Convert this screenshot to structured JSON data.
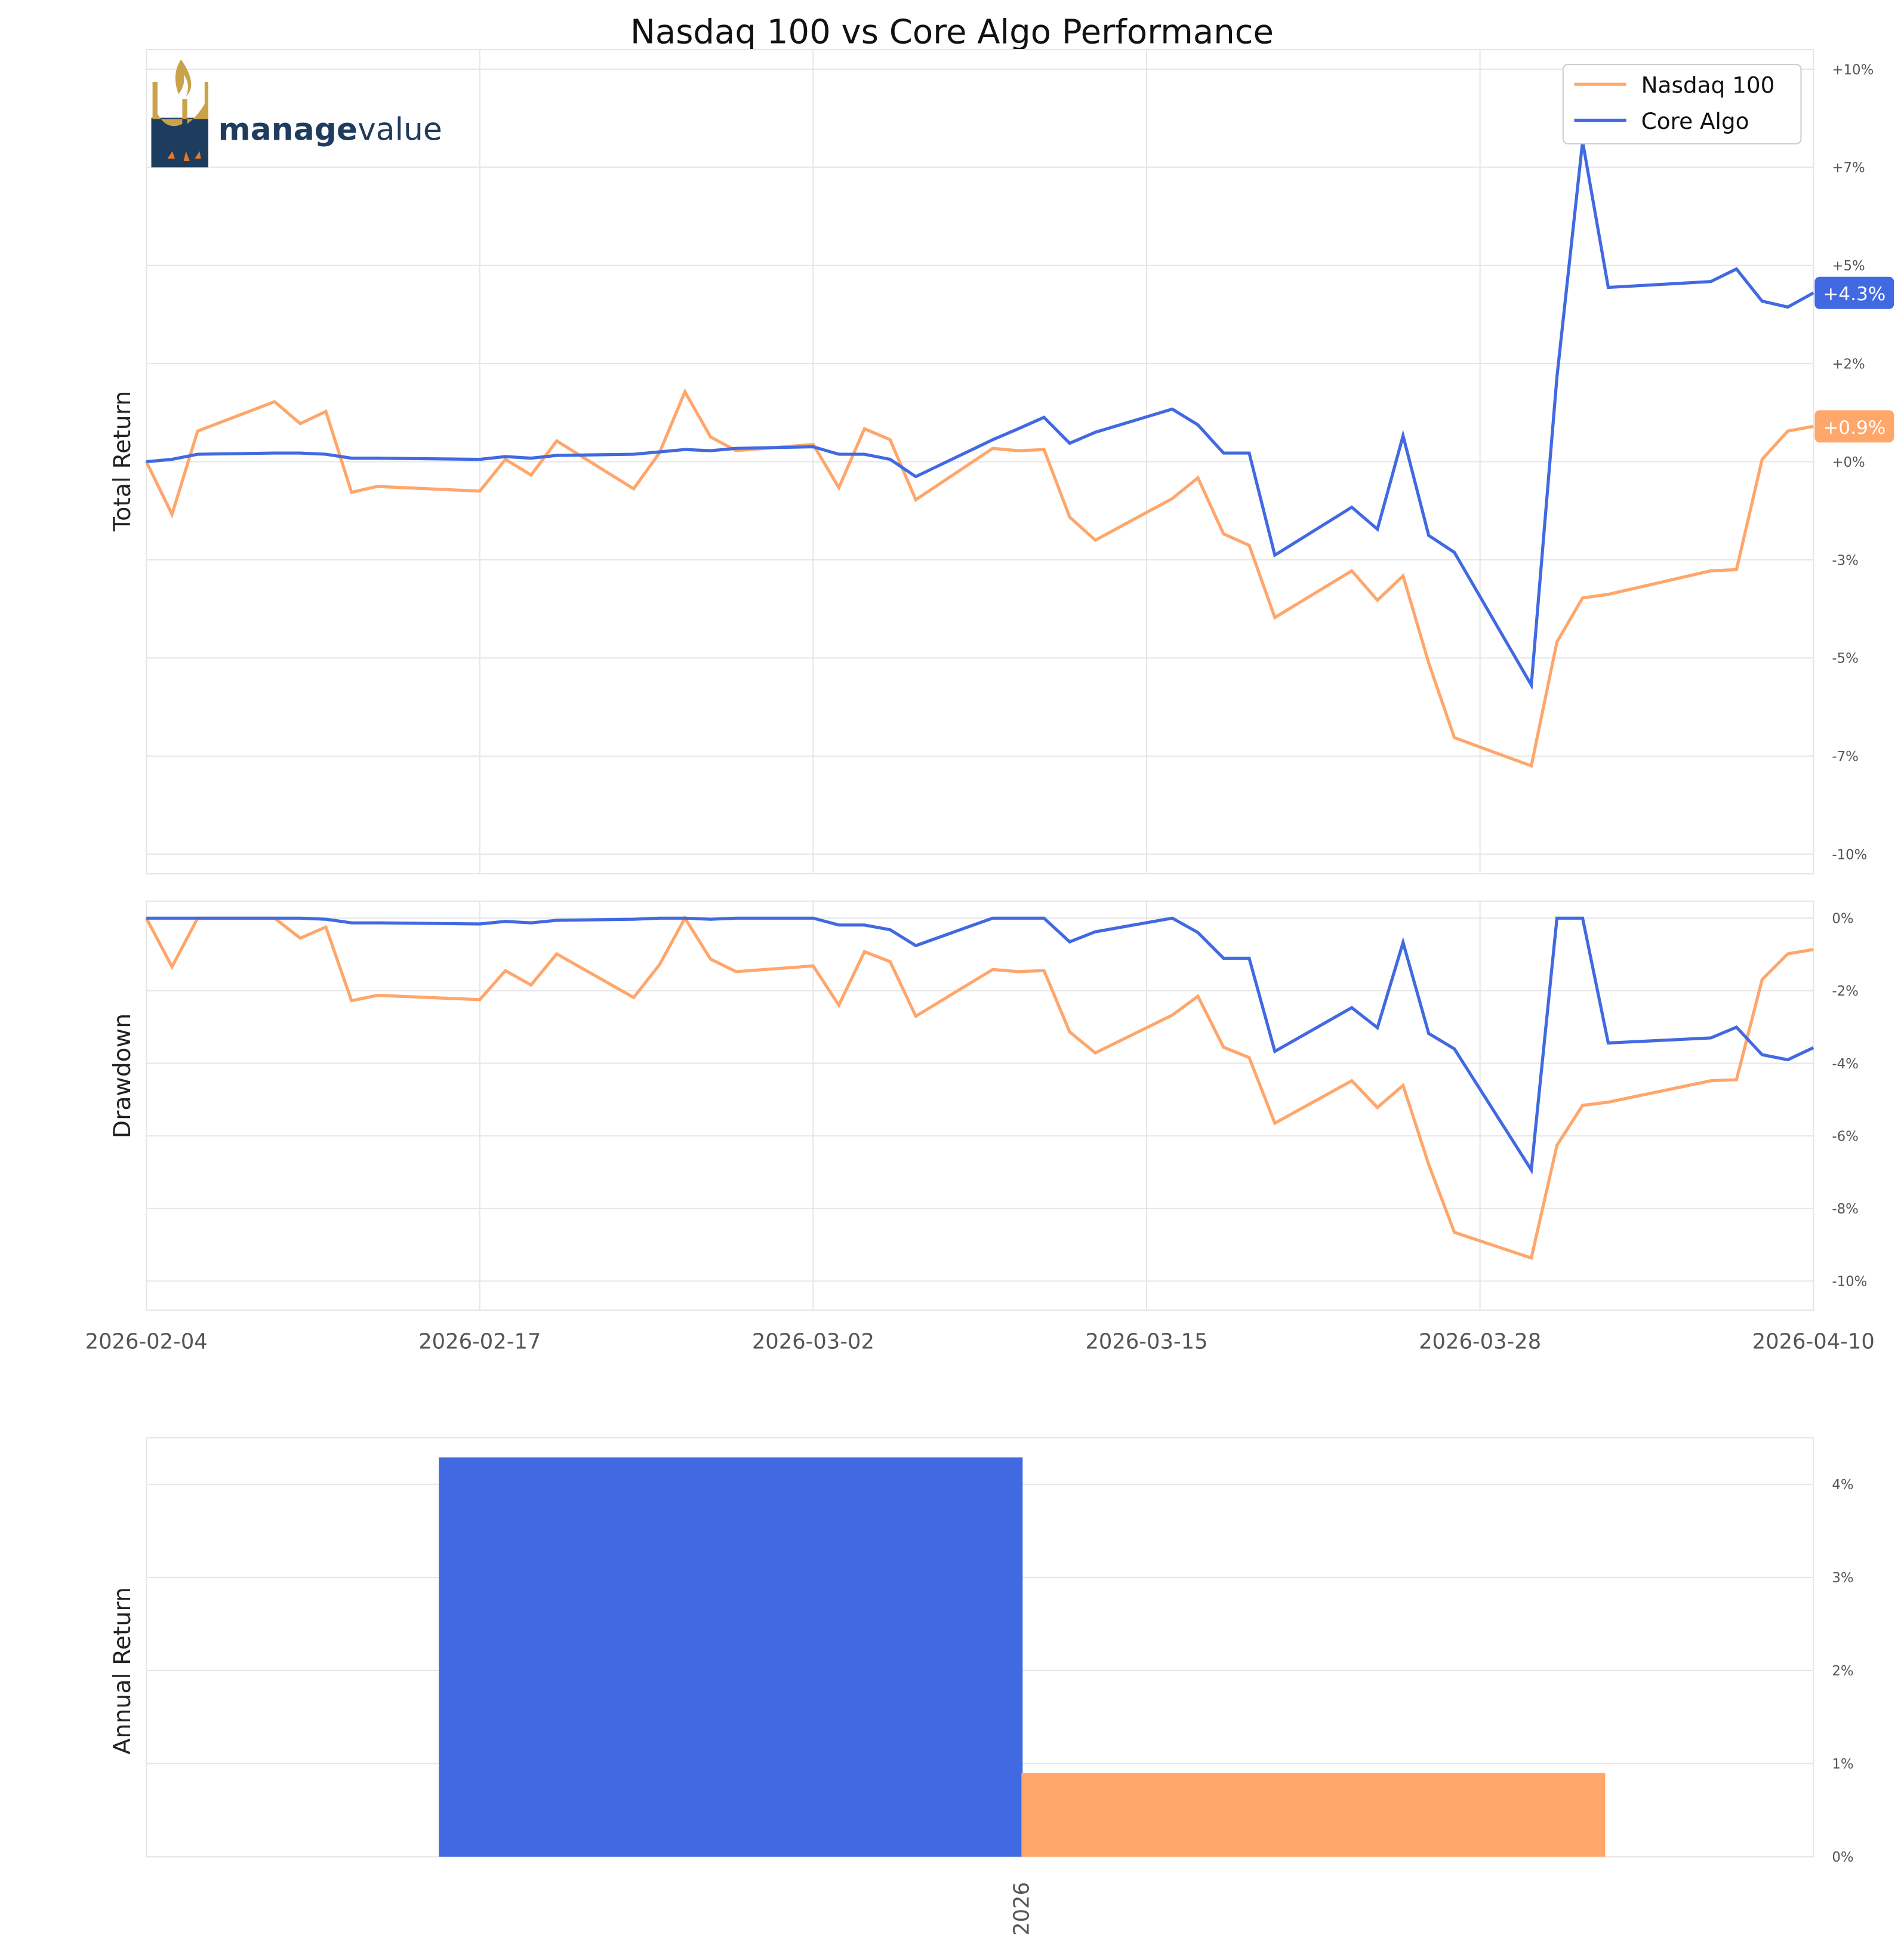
{
  "title": "Nasdaq 100 vs Core Algo Performance",
  "logo": {
    "text_bold": "manage",
    "text_light": "value",
    "colors": {
      "navy": "#1d3c5e",
      "gold": "#c9a24a",
      "orange": "#e8782a"
    }
  },
  "colors": {
    "nasdaq": "#ffa66b",
    "core": "#4169e1"
  },
  "chart_data": [
    {
      "type": "line",
      "ylabel": "Total Return",
      "ylim": [
        -10,
        10
      ],
      "y_ticks": [
        10,
        7.5,
        5,
        2.5,
        0,
        -2.5,
        -5,
        -7.5,
        -10
      ],
      "y_tick_labels": [
        "+10%",
        "+7%",
        "+5%",
        "+2%",
        "+0%",
        "-3%",
        "-5%",
        "-7%",
        "-10%"
      ],
      "x_tick_labels": [
        "2026-02-04",
        "2026-02-17",
        "2026-03-02",
        "2026-03-15",
        "2026-03-28",
        "2026-04-10"
      ],
      "grid": true,
      "legend": "top-right",
      "x": [
        "2026-02-04",
        "2026-02-05",
        "2026-02-06",
        "2026-02-09",
        "2026-02-10",
        "2026-02-11",
        "2026-02-12",
        "2026-02-13",
        "2026-02-17",
        "2026-02-18",
        "2026-02-19",
        "2026-02-20",
        "2026-02-23",
        "2026-02-24",
        "2026-02-25",
        "2026-02-26",
        "2026-02-27",
        "2026-03-02",
        "2026-03-03",
        "2026-03-04",
        "2026-03-05",
        "2026-03-06",
        "2026-03-09",
        "2026-03-10",
        "2026-03-11",
        "2026-03-12",
        "2026-03-13",
        "2026-03-16",
        "2026-03-17",
        "2026-03-18",
        "2026-03-19",
        "2026-03-20",
        "2026-03-23",
        "2026-03-24",
        "2026-03-25",
        "2026-03-26",
        "2026-03-27",
        "2026-03-30",
        "2026-03-31",
        "2026-04-01",
        "2026-04-02",
        "2026-04-06",
        "2026-04-07",
        "2026-04-08",
        "2026-04-09",
        "2026-04-10"
      ],
      "series": [
        {
          "name": "Nasdaq 100",
          "end_label": "+0.9%",
          "values": [
            0,
            -1.34,
            0.78,
            1.53,
            0.97,
            1.28,
            -0.78,
            -0.63,
            -0.75,
            0.06,
            -0.34,
            0.53,
            -0.69,
            0.22,
            1.78,
            0.63,
            0.28,
            0.44,
            -0.66,
            0.84,
            0.56,
            -0.97,
            0.34,
            0.28,
            0.31,
            -1.41,
            -2.0,
            -0.94,
            -0.41,
            -1.84,
            -2.13,
            -3.97,
            -2.78,
            -3.53,
            -2.91,
            -5.13,
            -7.03,
            -7.75,
            -4.59,
            -3.47,
            -3.38,
            -2.78,
            -2.75,
            0.06,
            0.78,
            0.9
          ]
        },
        {
          "name": "Core Algo",
          "end_label": "+4.3%",
          "values": [
            0,
            0.06,
            0.19,
            0.22,
            0.22,
            0.19,
            0.09,
            0.09,
            0.06,
            0.13,
            0.09,
            0.16,
            0.19,
            0.25,
            0.31,
            0.28,
            0.34,
            0.38,
            0.19,
            0.19,
            0.06,
            -0.38,
            0.56,
            0.84,
            1.13,
            0.47,
            0.75,
            1.34,
            0.94,
            0.22,
            0.22,
            -2.38,
            -1.16,
            -1.72,
            0.66,
            -1.88,
            -2.31,
            -5.69,
            2.16,
            8.16,
            4.44,
            4.59,
            4.91,
            4.09,
            3.94,
            4.3
          ]
        }
      ]
    },
    {
      "type": "line",
      "ylabel": "Drawdown",
      "ylim": [
        -10.8,
        0.5
      ],
      "y_ticks": [
        0,
        -2,
        -4,
        -6,
        -8,
        -10
      ],
      "y_tick_labels": [
        "0%",
        "-2%",
        "-4%",
        "-6%",
        "-8%",
        "-10%"
      ],
      "derived_from": "drawdown of Total Return series",
      "grid": true
    },
    {
      "type": "bar",
      "ylabel": "Annual Return",
      "categories": [
        "2026"
      ],
      "series": [
        {
          "name": "Core Algo",
          "values": [
            4.29
          ]
        },
        {
          "name": "Nasdaq 100",
          "values": [
            0.9
          ]
        }
      ],
      "ylim": [
        0,
        4.5
      ],
      "y_ticks": [
        0,
        1,
        2,
        3,
        4
      ],
      "y_tick_labels": [
        "0%",
        "1%",
        "2%",
        "3%",
        "4%"
      ],
      "grid": true
    }
  ]
}
